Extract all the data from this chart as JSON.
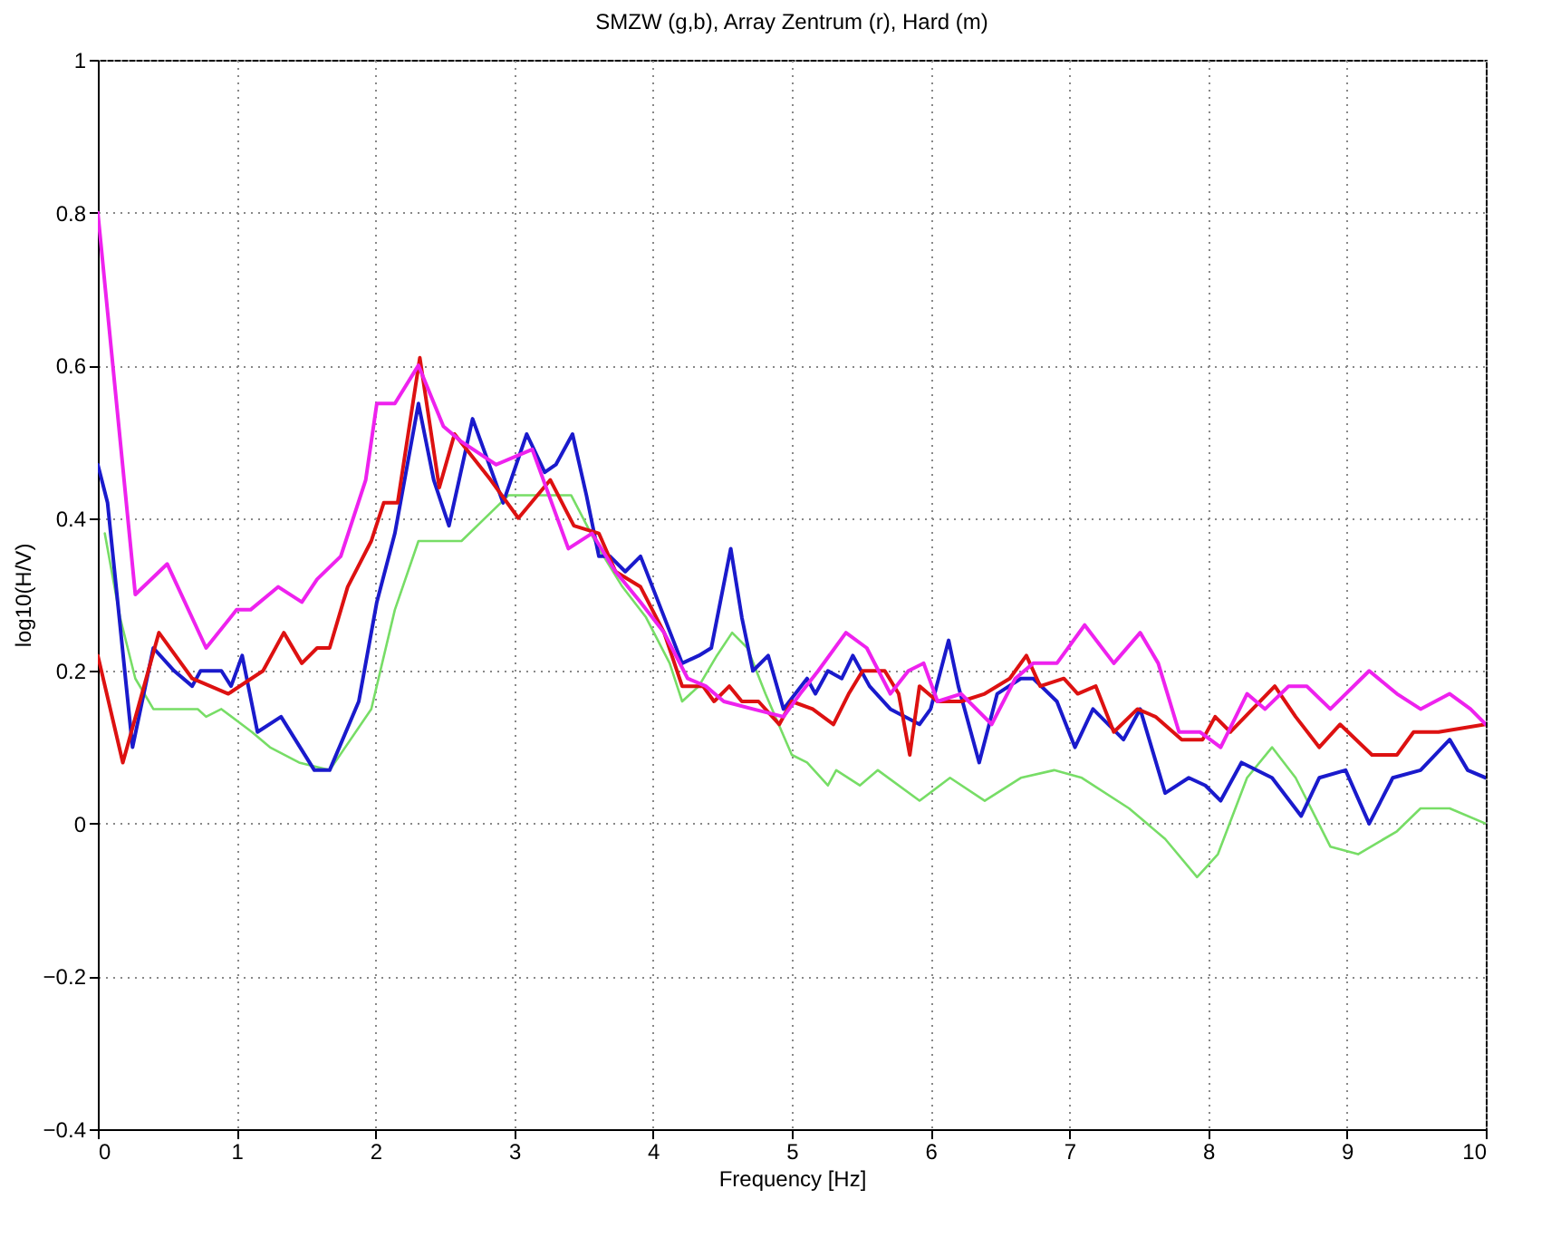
{
  "chart_data": {
    "type": "line",
    "title": "SMZW (g,b), Array Zentrum (r), Hard (m)",
    "xlabel": "Frequency [Hz]",
    "ylabel": "log10(H/V)",
    "xlim": [
      0,
      10
    ],
    "xticks": [
      0,
      1,
      2,
      3,
      4,
      5,
      6,
      7,
      8,
      9,
      10
    ],
    "ylim": [
      -0.4,
      1
    ],
    "yticks": [
      -0.4,
      -0.2,
      0,
      0.2,
      0.4,
      0.6,
      0.8,
      1
    ],
    "grid": true,
    "line_style": "solid",
    "marker": "none",
    "series": [
      {
        "color": "#77dd66",
        "x": [
          0.05,
          0.16,
          0.27,
          0.4,
          0.59,
          0.72,
          0.78,
          0.89,
          1.11,
          1.24,
          1.45,
          1.67,
          1.97,
          2.14,
          2.31,
          2.62,
          2.96,
          3.26,
          3.41,
          3.61,
          3.78,
          3.95,
          4.12,
          4.21,
          4.33,
          4.46,
          4.57,
          4.68,
          4.81,
          5.0,
          5.11,
          5.26,
          5.32,
          5.49,
          5.62,
          5.92,
          6.14,
          6.39,
          6.65,
          6.89,
          7.09,
          7.43,
          7.69,
          7.92,
          8.07,
          8.28,
          8.46,
          8.63,
          8.88,
          9.08,
          9.36,
          9.53,
          9.74,
          10
        ],
        "values": [
          0.38,
          0.27,
          0.19,
          0.15,
          0.15,
          0.15,
          0.14,
          0.15,
          0.12,
          0.1,
          0.08,
          0.07,
          0.15,
          0.28,
          0.37,
          0.37,
          0.43,
          0.43,
          0.43,
          0.36,
          0.31,
          0.27,
          0.21,
          0.16,
          0.18,
          0.22,
          0.25,
          0.23,
          0.17,
          0.09,
          0.08,
          0.05,
          0.07,
          0.05,
          0.07,
          0.03,
          0.06,
          0.03,
          0.06,
          0.07,
          0.06,
          0.02,
          -0.02,
          -0.07,
          -0.04,
          0.06,
          0.1,
          0.06,
          -0.03,
          -0.04,
          -0.01,
          0.02,
          0.02,
          0.0
        ]
      },
      {
        "color": "#1a1acc",
        "x": [
          0,
          0.07,
          0.25,
          0.4,
          0.55,
          0.68,
          0.74,
          0.89,
          0.96,
          1.04,
          1.15,
          1.32,
          1.56,
          1.67,
          1.88,
          2.01,
          2.14,
          2.31,
          2.42,
          2.53,
          2.7,
          2.92,
          3.09,
          3.22,
          3.3,
          3.42,
          3.52,
          3.61,
          3.69,
          3.8,
          3.91,
          4.06,
          4.21,
          4.33,
          4.42,
          4.56,
          4.64,
          4.72,
          4.83,
          4.94,
          5.11,
          5.17,
          5.26,
          5.36,
          5.44,
          5.56,
          5.71,
          5.92,
          6.0,
          6.13,
          6.2,
          6.35,
          6.48,
          6.65,
          6.74,
          6.91,
          7.04,
          7.17,
          7.39,
          7.51,
          7.69,
          7.86,
          7.98,
          8.09,
          8.24,
          8.46,
          8.67,
          8.8,
          8.99,
          9.16,
          9.33,
          9.53,
          9.74,
          9.87,
          10
        ],
        "values": [
          0.47,
          0.42,
          0.1,
          0.23,
          0.2,
          0.18,
          0.2,
          0.2,
          0.18,
          0.22,
          0.12,
          0.14,
          0.07,
          0.07,
          0.16,
          0.29,
          0.38,
          0.55,
          0.45,
          0.39,
          0.53,
          0.42,
          0.51,
          0.46,
          0.47,
          0.51,
          0.43,
          0.35,
          0.35,
          0.33,
          0.35,
          0.28,
          0.21,
          0.22,
          0.23,
          0.36,
          0.27,
          0.2,
          0.22,
          0.15,
          0.19,
          0.17,
          0.2,
          0.19,
          0.22,
          0.18,
          0.15,
          0.13,
          0.15,
          0.24,
          0.18,
          0.08,
          0.17,
          0.19,
          0.19,
          0.16,
          0.1,
          0.15,
          0.11,
          0.15,
          0.04,
          0.06,
          0.05,
          0.03,
          0.08,
          0.06,
          0.01,
          0.06,
          0.07,
          0.0,
          0.06,
          0.07,
          0.11,
          0.07,
          0.06
        ]
      },
      {
        "color": "#dd1111",
        "x": [
          0,
          0.18,
          0.44,
          0.68,
          0.94,
          1.19,
          1.34,
          1.47,
          1.58,
          1.67,
          1.8,
          1.97,
          2.06,
          2.16,
          2.32,
          2.46,
          2.57,
          2.83,
          3.03,
          3.26,
          3.43,
          3.61,
          3.73,
          3.91,
          4.08,
          4.21,
          4.36,
          4.44,
          4.55,
          4.64,
          4.76,
          4.91,
          5.0,
          5.15,
          5.3,
          5.41,
          5.51,
          5.67,
          5.77,
          5.85,
          5.92,
          6.05,
          6.22,
          6.39,
          6.57,
          6.69,
          6.79,
          6.96,
          7.06,
          7.19,
          7.32,
          7.49,
          7.62,
          7.81,
          7.96,
          8.05,
          8.16,
          8.48,
          8.63,
          8.8,
          8.95,
          9.18,
          9.36,
          9.48,
          9.66,
          10
        ],
        "values": [
          0.22,
          0.08,
          0.25,
          0.19,
          0.17,
          0.2,
          0.25,
          0.21,
          0.23,
          0.23,
          0.31,
          0.37,
          0.42,
          0.42,
          0.61,
          0.44,
          0.51,
          0.45,
          0.4,
          0.45,
          0.39,
          0.38,
          0.33,
          0.31,
          0.25,
          0.18,
          0.18,
          0.16,
          0.18,
          0.16,
          0.16,
          0.13,
          0.16,
          0.15,
          0.13,
          0.17,
          0.2,
          0.2,
          0.17,
          0.09,
          0.18,
          0.16,
          0.16,
          0.17,
          0.19,
          0.22,
          0.18,
          0.19,
          0.17,
          0.18,
          0.12,
          0.15,
          0.14,
          0.11,
          0.11,
          0.14,
          0.12,
          0.18,
          0.14,
          0.1,
          0.13,
          0.09,
          0.09,
          0.12,
          0.12,
          0.13
        ]
      },
      {
        "color": "#ee22ee",
        "x": [
          0,
          0.27,
          0.5,
          0.78,
          1.0,
          1.1,
          1.3,
          1.47,
          1.58,
          1.75,
          1.93,
          2.01,
          2.14,
          2.31,
          2.49,
          2.62,
          2.87,
          3.13,
          3.39,
          3.56,
          3.73,
          3.91,
          4.08,
          4.25,
          4.38,
          4.51,
          4.72,
          4.94,
          5.06,
          5.19,
          5.39,
          5.54,
          5.71,
          5.84,
          5.95,
          6.05,
          6.22,
          6.44,
          6.61,
          6.74,
          6.91,
          7.11,
          7.32,
          7.51,
          7.64,
          7.79,
          7.94,
          8.09,
          8.28,
          8.41,
          8.58,
          8.71,
          8.88,
          9.16,
          9.36,
          9.53,
          9.74,
          9.89,
          10
        ],
        "values": [
          0.8,
          0.3,
          0.34,
          0.23,
          0.28,
          0.28,
          0.31,
          0.29,
          0.32,
          0.35,
          0.45,
          0.55,
          0.55,
          0.6,
          0.52,
          0.5,
          0.47,
          0.49,
          0.36,
          0.38,
          0.33,
          0.29,
          0.25,
          0.19,
          0.18,
          0.16,
          0.15,
          0.14,
          0.17,
          0.2,
          0.25,
          0.23,
          0.17,
          0.2,
          0.21,
          0.16,
          0.17,
          0.13,
          0.19,
          0.21,
          0.21,
          0.26,
          0.21,
          0.25,
          0.21,
          0.12,
          0.12,
          0.1,
          0.17,
          0.15,
          0.18,
          0.18,
          0.15,
          0.2,
          0.17,
          0.15,
          0.17,
          0.15,
          0.13
        ]
      }
    ]
  }
}
